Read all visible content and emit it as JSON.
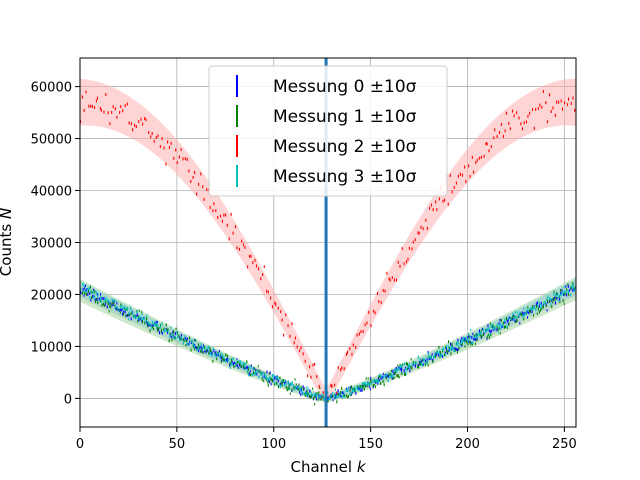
{
  "chart_data": {
    "type": "scatter",
    "title": "",
    "xlabel": "Channel",
    "xlabel_var": "k",
    "ylabel": "Counts",
    "ylabel_var": "N",
    "xlim": [
      0,
      256
    ],
    "ylim": [
      -5500,
      65500
    ],
    "xticks": [
      0,
      50,
      100,
      150,
      200,
      250
    ],
    "yticks": [
      0,
      10000,
      20000,
      30000,
      40000,
      50000,
      60000
    ],
    "grid": true,
    "legend_position": "top-center",
    "vertical_line": {
      "x": 127,
      "color": "#1f77b4"
    },
    "band_sigma_label": "±10σ",
    "series": [
      {
        "name": "Messung 0 ±10σ",
        "color": "#0000ff",
        "band_color": "#1f77b4",
        "band_fill": "#9ab3d6",
        "peak": 21000,
        "band_halfwidth": 1500,
        "noise": 900,
        "profile": "normal"
      },
      {
        "name": "Messung 1 ±10σ",
        "color": "#008000",
        "band_color": "#2ca02c",
        "band_fill": "#a4d6a0",
        "peak": 20800,
        "band_halfwidth": 2200,
        "noise": 1200,
        "profile": "normal"
      },
      {
        "name": "Messung 2 ±10σ",
        "color": "#ff0000",
        "band_color": "#ff6666",
        "band_fill": "#ffb0b0",
        "peak": 57000,
        "band_halfwidth": 4500,
        "noise": 2500,
        "profile": "red"
      },
      {
        "name": "Messung 3 ±10σ",
        "color": "#00bfbf",
        "band_color": "#17becf",
        "band_fill": "#9fdbd8",
        "peak": 21300,
        "band_halfwidth": 1400,
        "noise": 800,
        "profile": "normal"
      }
    ]
  }
}
